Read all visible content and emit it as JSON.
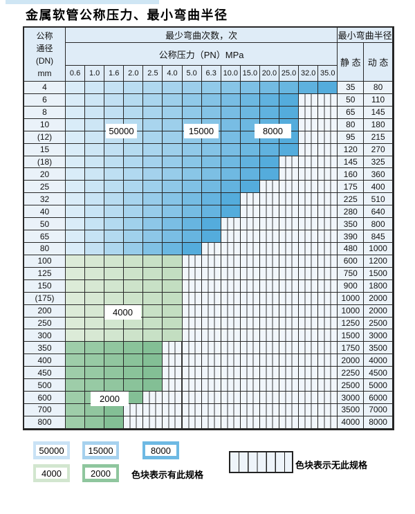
{
  "title": "金属软管公称压力、最小弯曲半径",
  "table": {
    "header": {
      "dn_label_lines": "公称\n通径\n(DN)\nmm",
      "bend_cycles": "最少弯曲次数，次",
      "pressure": "公称压力（PN）MPa",
      "min_radius": "最小弯曲半径",
      "static_label": "静 态",
      "dynamic_label": "动 态",
      "pressures": [
        "0.6",
        "1.0",
        "1.6",
        "2.0",
        "2.5",
        "4.0",
        "5.0",
        "6.3",
        "10.0",
        "15.0",
        "20.0",
        "25.0",
        "32.0",
        "35.0"
      ]
    },
    "rows": [
      {
        "dn": "4",
        "fill": "blue",
        "max_pn": "35.0",
        "min_radius_static": "35",
        "min_radius_dynamic": "80"
      },
      {
        "dn": "6",
        "fill": "blue",
        "max_pn": "25.0",
        "min_radius_static": "50",
        "min_radius_dynamic": "110"
      },
      {
        "dn": "8",
        "fill": "blue",
        "max_pn": "25.0",
        "min_radius_static": "65",
        "min_radius_dynamic": "145"
      },
      {
        "dn": "10",
        "fill": "blue",
        "max_pn": "25.0",
        "min_radius_static": "80",
        "min_radius_dynamic": "180"
      },
      {
        "dn": "(12)",
        "fill": "blue",
        "max_pn": "25.0",
        "min_radius_static": "95",
        "min_radius_dynamic": "215"
      },
      {
        "dn": "15",
        "fill": "blue",
        "max_pn": "25.0",
        "min_radius_static": "120",
        "min_radius_dynamic": "270"
      },
      {
        "dn": "(18)",
        "fill": "blue",
        "max_pn": "20.0",
        "min_radius_static": "145",
        "min_radius_dynamic": "325"
      },
      {
        "dn": "20",
        "fill": "blue",
        "max_pn": "20.0",
        "min_radius_static": "160",
        "min_radius_dynamic": "360"
      },
      {
        "dn": "25",
        "fill": "blue",
        "max_pn": "15.0",
        "min_radius_static": "175",
        "min_radius_dynamic": "400"
      },
      {
        "dn": "32",
        "fill": "blue",
        "max_pn": "10.0",
        "min_radius_static": "225",
        "min_radius_dynamic": "510"
      },
      {
        "dn": "40",
        "fill": "blue",
        "max_pn": "10.0",
        "min_radius_static": "280",
        "min_radius_dynamic": "640"
      },
      {
        "dn": "50",
        "fill": "blue",
        "max_pn": "6.3",
        "min_radius_static": "350",
        "min_radius_dynamic": "800"
      },
      {
        "dn": "65",
        "fill": "blue",
        "max_pn": "6.3",
        "min_radius_static": "390",
        "min_radius_dynamic": "845"
      },
      {
        "dn": "80",
        "fill": "blue",
        "max_pn": "5.0",
        "min_radius_static": "480",
        "min_radius_dynamic": "1000"
      },
      {
        "dn": "100",
        "fill": "green-4000",
        "max_pn": "4.0",
        "min_radius_static": "600",
        "min_radius_dynamic": "1200"
      },
      {
        "dn": "125",
        "fill": "green-4000",
        "max_pn": "4.0",
        "min_radius_static": "750",
        "min_radius_dynamic": "1500"
      },
      {
        "dn": "150",
        "fill": "green-4000",
        "max_pn": "4.0",
        "min_radius_static": "900",
        "min_radius_dynamic": "1800"
      },
      {
        "dn": "(175)",
        "fill": "green-4000",
        "max_pn": "4.0",
        "min_radius_static": "1000",
        "min_radius_dynamic": "2000"
      },
      {
        "dn": "200",
        "fill": "green-4000",
        "max_pn": "4.0",
        "min_radius_static": "1000",
        "min_radius_dynamic": "2000"
      },
      {
        "dn": "250",
        "fill": "green-4000",
        "max_pn": "4.0",
        "min_radius_static": "1250",
        "min_radius_dynamic": "2500"
      },
      {
        "dn": "300",
        "fill": "green-4000",
        "max_pn": "4.0",
        "min_radius_static": "1500",
        "min_radius_dynamic": "3000"
      },
      {
        "dn": "350",
        "fill": "green-2000",
        "max_pn": "2.5",
        "min_radius_static": "1750",
        "min_radius_dynamic": "3500"
      },
      {
        "dn": "400",
        "fill": "green-2000",
        "max_pn": "2.5",
        "min_radius_static": "2000",
        "min_radius_dynamic": "4000"
      },
      {
        "dn": "450",
        "fill": "green-2000",
        "max_pn": "2.5",
        "min_radius_static": "2250",
        "min_radius_dynamic": "4500"
      },
      {
        "dn": "500",
        "fill": "green-2000",
        "max_pn": "2.5",
        "min_radius_static": "2500",
        "min_radius_dynamic": "5000"
      },
      {
        "dn": "600",
        "fill": "green-2000",
        "max_pn": "2.0",
        "min_radius_static": "3000",
        "min_radius_dynamic": "6000"
      },
      {
        "dn": "700",
        "fill": "green-2000",
        "max_pn": "1.6",
        "min_radius_static": "3500",
        "min_radius_dynamic": "7000"
      },
      {
        "dn": "800",
        "fill": "green-2000",
        "max_pn": "1.6",
        "min_radius_static": "4000",
        "min_radius_dynamic": "8000"
      }
    ]
  },
  "overlays": [
    "50000",
    "15000",
    "8000",
    "4000",
    "2000"
  ],
  "legend": {
    "available": [
      {
        "label": "50000",
        "color": "#c9e2f5"
      },
      {
        "label": "15000",
        "color": "#a6d1ee"
      },
      {
        "label": "8000",
        "color": "#6eb9e3"
      },
      {
        "label": "4000",
        "color": "#d2e6cf"
      },
      {
        "label": "2000",
        "color": "#8fc69e"
      }
    ],
    "available_note": "色块表示有此规格",
    "unavailable_note": "色块表示无此规格"
  },
  "colors": {
    "bands": {
      "blue": [
        "#d9ecf8",
        "#54acdc"
      ],
      "green-4000": [
        "#dcebd8",
        "#c3dec1"
      ],
      "green-2000": [
        "#9ecda9",
        "#83bf95"
      ]
    },
    "header_bg": "#dfecf7",
    "label_col_bg": "#eaf2f9",
    "stripe_bg": "#f1f6fb",
    "border": "#262626"
  }
}
